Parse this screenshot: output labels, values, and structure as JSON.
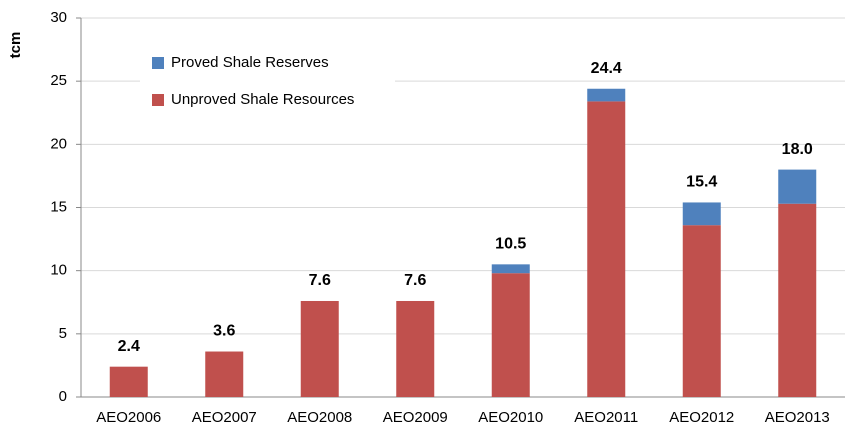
{
  "chart_data": {
    "type": "stacked_bar",
    "y_label": "tcm",
    "categories": [
      "AEO2006",
      "AEO2007",
      "AEO2008",
      "AEO2009",
      "AEO2010",
      "AEO2011",
      "AEO2012",
      "AEO2013"
    ],
    "series": [
      {
        "name": "Unproved Shale Resources",
        "color": "#c0504d",
        "values": [
          2.4,
          3.6,
          7.6,
          7.6,
          9.8,
          23.4,
          13.6,
          15.3
        ]
      },
      {
        "name": "Proved Shale Reserves",
        "color": "#4f81bd",
        "values": [
          0,
          0,
          0,
          0,
          0.7,
          1.0,
          1.8,
          2.7
        ]
      }
    ],
    "total_values": [
      2.4,
      3.6,
      7.6,
      7.6,
      10.5,
      24.4,
      15.4,
      18.0
    ],
    "total_labels": [
      "2.4",
      "3.6",
      "7.6",
      "7.6",
      "10.5",
      "24.4",
      "15.4",
      "18.0"
    ],
    "ylim": [
      0,
      30
    ],
    "yticks": [
      0,
      5,
      10,
      15,
      20,
      25,
      30
    ],
    "grid": true,
    "legend_order": [
      1,
      0
    ]
  }
}
